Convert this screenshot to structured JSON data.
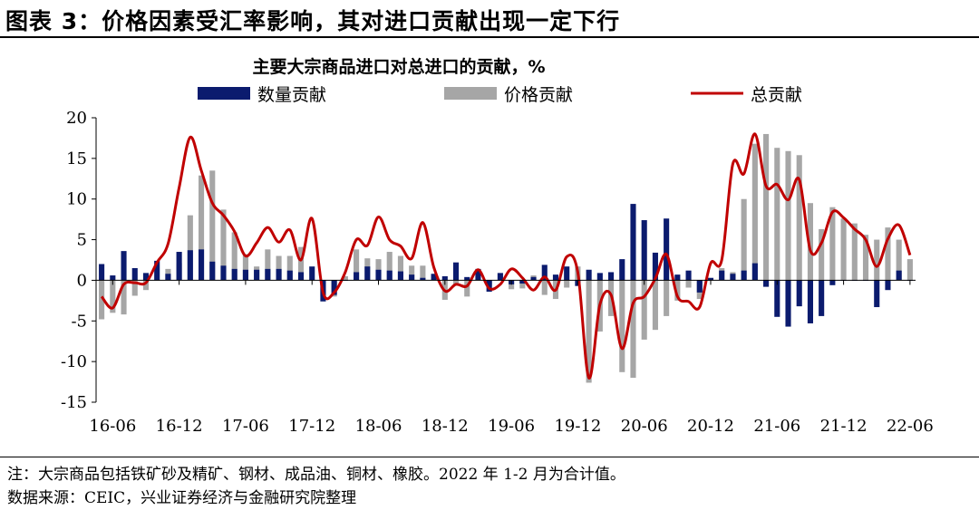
{
  "figure_title": "图表 3：价格因素受汇率影响，其对进口贡献出现一定下行",
  "note": "注：大宗商品包括铁矿砂及精矿、钢材、成品油、铜材、橡胶。2022 年 1-2 月为合计值。",
  "source": "数据来源：CEIC，兴业证券经济与金融研究院整理",
  "chart_data": {
    "type": "bar",
    "title": "主要大宗商品进口对总进口的贡献，%",
    "ylim": [
      -15,
      20
    ],
    "yticks": [
      20,
      15,
      10,
      5,
      0,
      -5,
      -10,
      -15
    ],
    "xtick_labels": [
      "16-06",
      "16-12",
      "17-06",
      "17-12",
      "18-06",
      "18-12",
      "19-06",
      "19-12",
      "20-06",
      "20-12",
      "21-06",
      "21-12",
      "22-06"
    ],
    "x": [
      "16-05",
      "16-06",
      "16-07",
      "16-08",
      "16-09",
      "16-10",
      "16-11",
      "16-12",
      "17-01",
      "17-02",
      "17-03",
      "17-04",
      "17-05",
      "17-06",
      "17-07",
      "17-08",
      "17-09",
      "17-10",
      "17-11",
      "17-12",
      "18-01",
      "18-02",
      "18-03",
      "18-04",
      "18-05",
      "18-06",
      "18-07",
      "18-08",
      "18-09",
      "18-10",
      "18-11",
      "18-12",
      "19-01",
      "19-02",
      "19-03",
      "19-04",
      "19-05",
      "19-06",
      "19-07",
      "19-08",
      "19-09",
      "19-10",
      "19-11",
      "19-12",
      "20-01",
      "20-02",
      "20-03",
      "20-04",
      "20-05",
      "20-06",
      "20-07",
      "20-08",
      "20-09",
      "20-10",
      "20-11",
      "20-12",
      "21-01",
      "21-02",
      "21-03",
      "21-04",
      "21-05",
      "21-06",
      "21-07",
      "21-08",
      "21-09",
      "21-10",
      "21-11",
      "21-12",
      "22-01",
      "22-02",
      "22-03",
      "22-04",
      "22-05",
      "22-06"
    ],
    "grid": false,
    "legend_position": "top",
    "series": [
      {
        "name": "数量贡献",
        "type": "bar",
        "color": "#0b1b6e",
        "values": [
          2.0,
          0.6,
          3.6,
          1.5,
          0.9,
          2.4,
          0.8,
          3.5,
          3.7,
          3.8,
          2.3,
          1.8,
          1.4,
          1.3,
          1.3,
          1.4,
          1.4,
          1.2,
          1.0,
          1.7,
          -2.6,
          -1.8,
          0.0,
          1.0,
          1.7,
          1.3,
          1.2,
          1.1,
          0.7,
          0.3,
          0.8,
          0.5,
          2.2,
          0.4,
          1.4,
          -1.4,
          0.9,
          -0.5,
          -0.4,
          0.4,
          1.9,
          0.7,
          1.7,
          -0.7,
          1.3,
          0.9,
          1.0,
          2.6,
          9.4,
          7.4,
          3.4,
          7.6,
          0.7,
          1.2,
          -1.5,
          0.3,
          1.2,
          0.8,
          1.2,
          2.1,
          -0.8,
          -4.5,
          -5.7,
          -3.2,
          -5.3,
          -4.4,
          -0.6,
          0.0,
          0.0,
          0.0,
          -3.3,
          -1.2,
          1.2,
          0.0
        ]
      },
      {
        "name": "价格贡献",
        "type": "bar",
        "color": "#a6a6a6",
        "values": [
          -4.8,
          -4.0,
          -4.2,
          -1.9,
          -1.2,
          0.0,
          1.4,
          2.1,
          8.0,
          12.9,
          13.5,
          8.7,
          5.9,
          3.2,
          1.7,
          3.8,
          3.0,
          3.0,
          4.1,
          0.0,
          -2.0,
          -2.0,
          0.5,
          3.8,
          2.7,
          2.6,
          3.5,
          3.0,
          1.8,
          1.8,
          0.4,
          -2.4,
          -0.5,
          -2.0,
          0.1,
          -0.7,
          0.0,
          -1.1,
          -1.0,
          0.6,
          -1.8,
          -2.3,
          -0.9,
          1.7,
          -12.6,
          -6.3,
          -4.4,
          -11.3,
          -12.0,
          -7.3,
          -6.1,
          -4.4,
          -2.5,
          -0.9,
          -2.3,
          0.0,
          1.5,
          1.0,
          10.0,
          16.8,
          18.0,
          16.3,
          15.9,
          15.4,
          9.5,
          6.3,
          9.0,
          7.6,
          7.0,
          5.6,
          5.0,
          6.5,
          5.0,
          2.6
        ]
      },
      {
        "name": "总贡献",
        "type": "line",
        "color": "#c00000",
        "values": [
          -2.0,
          -3.4,
          -0.5,
          -0.3,
          -0.3,
          2.2,
          4.5,
          11.4,
          17.6,
          13.5,
          9.5,
          8.0,
          6.0,
          3.0,
          4.6,
          6.5,
          4.7,
          6.2,
          2.5,
          7.6,
          -1.5,
          -1.5,
          1.0,
          5.0,
          4.3,
          7.8,
          5.0,
          4.2,
          2.7,
          7.1,
          1.6,
          -1.3,
          -0.5,
          -0.7,
          1.3,
          -1.0,
          -0.5,
          1.4,
          0.3,
          -1.2,
          0.4,
          -1.2,
          2.9,
          1.0,
          -12.0,
          -3.0,
          -1.8,
          -8.4,
          -2.8,
          -2.0,
          0.2,
          3.2,
          -2.0,
          -2.6,
          -3.3,
          2.1,
          2.5,
          14.3,
          13.1,
          18.0,
          11.6,
          11.8,
          9.9,
          12.4,
          3.7,
          4.6,
          8.4,
          7.7,
          6.3,
          5.0,
          1.7,
          5.1,
          6.8,
          3.1
        ]
      }
    ]
  }
}
